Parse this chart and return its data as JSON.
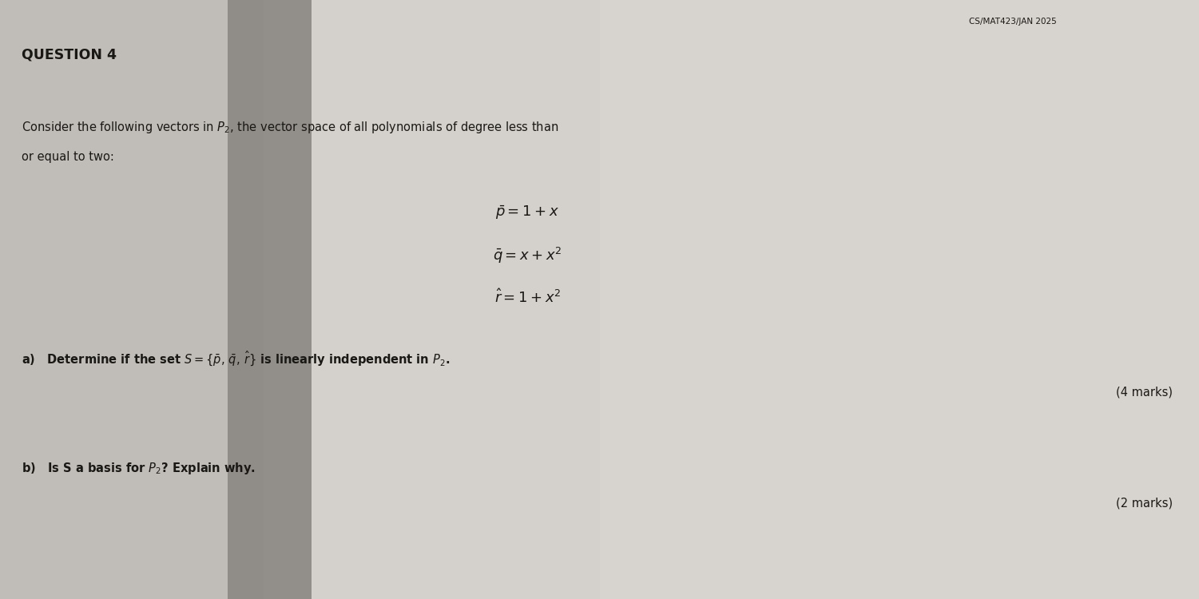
{
  "header": "CS/MAT423/JAN 2025",
  "question_number": "QUESTION 4",
  "intro_text_line1": "Consider the following vectors in $P_2$, the vector space of all polynomials of degree less than",
  "intro_text_line2": "or equal to two:",
  "eq1": "$\\bar{p} = 1 + x$",
  "eq2": "$\\bar{q} = x + x^2$",
  "eq3": "$\\hat{r} = 1 + x^2$",
  "part_a_prefix": "a)   Determine if the set ",
  "part_a_math": "$S = \\{\\bar{p},\\, \\bar{q},\\, \\hat{r}\\}$",
  "part_a_suffix": " is linearly independent in $P_2$.",
  "marks_a": "(4 marks)",
  "part_b_prefix": "b)   Is S a basis for ",
  "part_b_math": "$P_2$",
  "part_b_suffix": "? Explain why.",
  "marks_b": "(2 marks)",
  "bg_left_color": "#b8b5b0",
  "bg_mid_shadow": "#9a9590",
  "bg_right_color": "#d0cdc8",
  "text_color": "#1a1815",
  "header_color": "#1a1815",
  "fig_width": 15.01,
  "fig_height": 7.5,
  "dpi": 100
}
